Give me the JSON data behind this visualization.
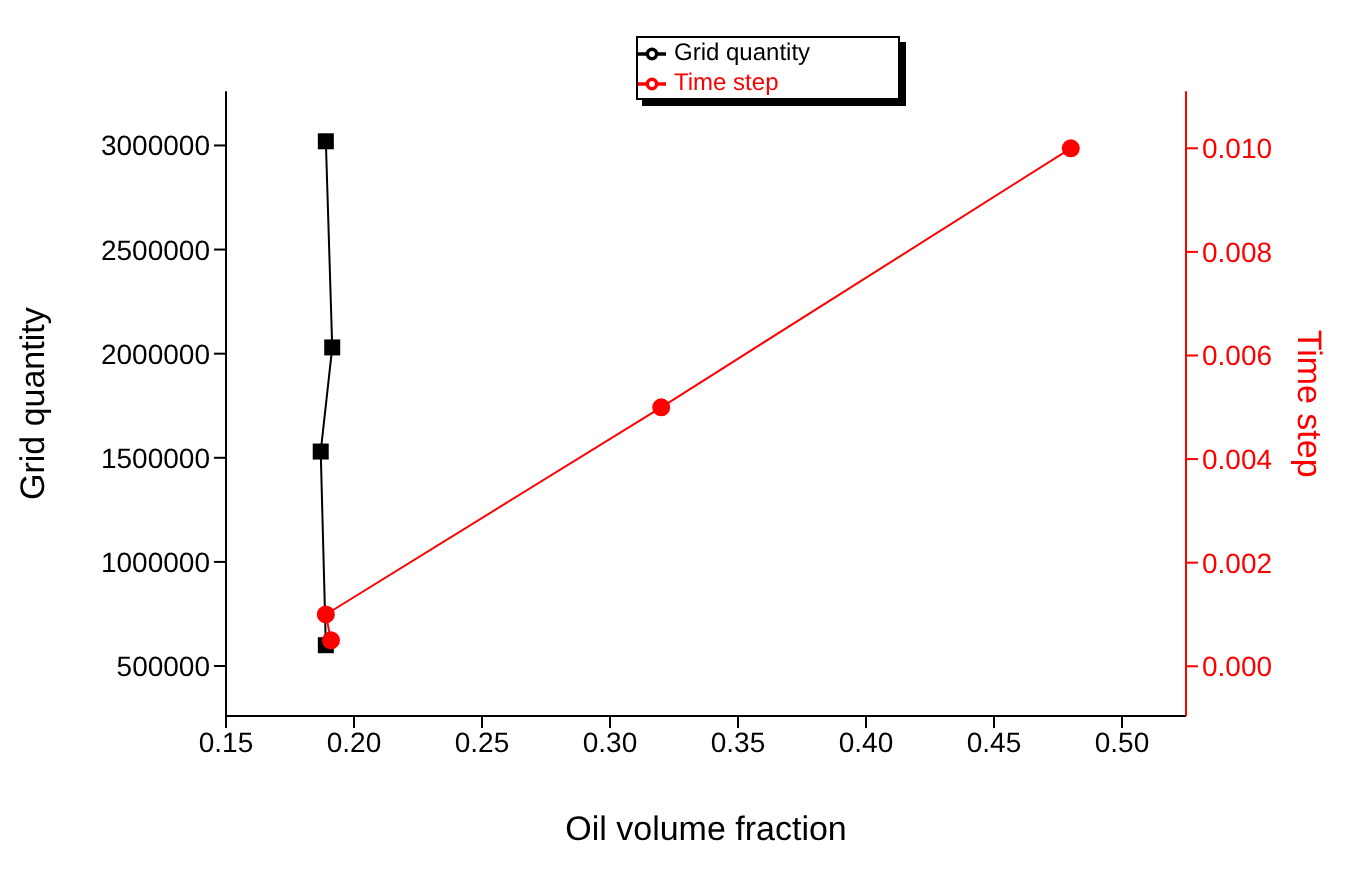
{
  "chart_data": {
    "type": "line",
    "xlabel": "Oil volume fraction",
    "ylabel": "Grid quantity",
    "y2label": "Time step",
    "xlim": [
      0.15,
      0.525
    ],
    "xticks": [
      {
        "value": 0.15,
        "label": "0.15"
      },
      {
        "value": 0.2,
        "label": "0.20"
      },
      {
        "value": 0.25,
        "label": "0.25"
      },
      {
        "value": 0.3,
        "label": "0.30"
      },
      {
        "value": 0.35,
        "label": "0.35"
      },
      {
        "value": 0.4,
        "label": "0.40"
      },
      {
        "value": 0.45,
        "label": "0.45"
      },
      {
        "value": 0.5,
        "label": "0.50"
      }
    ],
    "ylim": [
      260000,
      3260000
    ],
    "yticks": [
      500000,
      1000000,
      1500000,
      2000000,
      2500000,
      3000000
    ],
    "y2lim": [
      -0.00096,
      0.0111
    ],
    "y2ticks": [
      {
        "value": 0,
        "label": "0.000"
      },
      {
        "value": 0.002,
        "label": "0.002"
      },
      {
        "value": 0.004,
        "label": "0.004"
      },
      {
        "value": 0.006,
        "label": "0.006"
      },
      {
        "value": 0.008,
        "label": "0.008"
      },
      {
        "value": 0.01,
        "label": "0.010"
      }
    ],
    "legend": "top",
    "series": [
      {
        "name": "Grid quantity",
        "color": "#000000",
        "marker": "square",
        "x": [
          0.189,
          0.187,
          0.1915,
          0.189
        ],
        "values": [
          600000,
          1530000,
          2030000,
          3020000
        ]
      },
      {
        "name": "Time step",
        "color": "#ff0000",
        "marker": "circle",
        "axis": "y2",
        "x": [
          0.191,
          0.189,
          0.32,
          0.48
        ],
        "values": [
          0.0005,
          0.001,
          0.005,
          0.01
        ]
      }
    ]
  }
}
